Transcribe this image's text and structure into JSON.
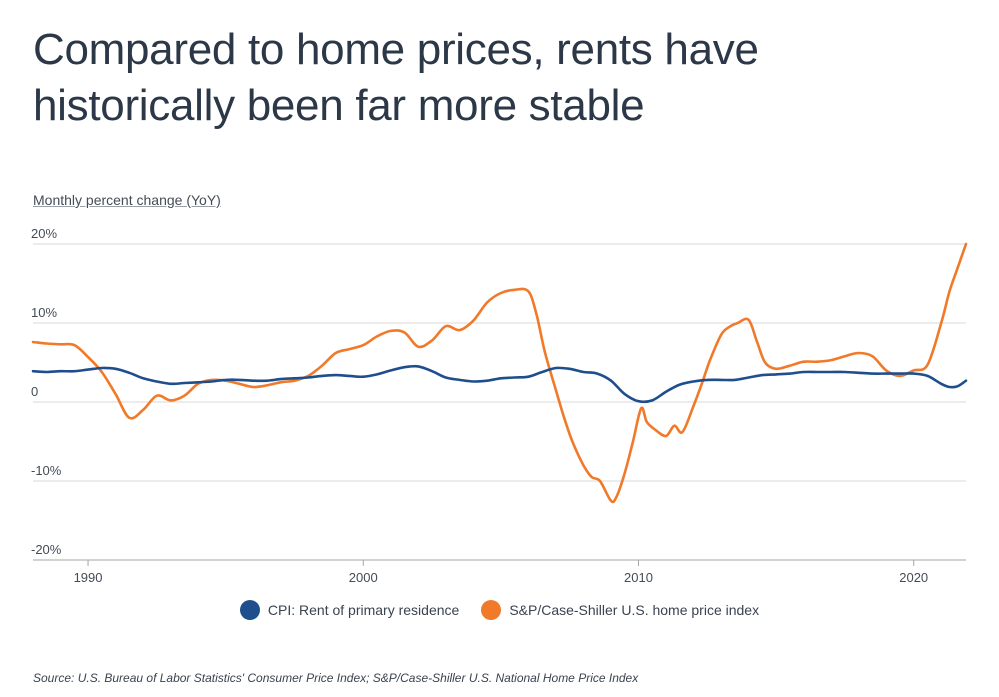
{
  "title": "Compared to home prices, rents have historically been far more stable",
  "source": "Source:  U.S. Bureau of Labor Statistics' Consumer Price Index; S&P/Case-Shiller U.S. National Home Price Index",
  "colors": {
    "rent": "#1f4e8c",
    "home": "#f07a2a",
    "grid": "#d9d9d9",
    "axis": "#a6a6a6"
  },
  "chart_data": {
    "type": "line",
    "title": "Compared to home prices, rents have historically been far more stable",
    "ylabel": "Monthly percent change (YoY)",
    "xlabel": "",
    "xlim": [
      1988,
      2021.9
    ],
    "ylim": [
      -20,
      20
    ],
    "y_ticks": [
      {
        "value": 20,
        "label": "20%"
      },
      {
        "value": 10,
        "label": "10%"
      },
      {
        "value": 0,
        "label": "0"
      },
      {
        "value": -10,
        "label": "-10%"
      },
      {
        "value": -20,
        "label": "-20%"
      }
    ],
    "x_ticks": [
      {
        "value": 1990,
        "label": "1990"
      },
      {
        "value": 2000,
        "label": "2000"
      },
      {
        "value": 2010,
        "label": "2010"
      },
      {
        "value": 2020,
        "label": "2020"
      }
    ],
    "grid": "horizontal",
    "legend_position": "bottom-center",
    "series": [
      {
        "name": "CPI: Rent of primary residence",
        "color": "#1f4e8c",
        "x": [
          1988,
          1988.5,
          1989,
          1989.5,
          1990,
          1990.5,
          1991,
          1991.5,
          1992,
          1992.5,
          1993,
          1993.5,
          1994,
          1994.5,
          1995,
          1995.5,
          1996,
          1996.5,
          1997,
          1997.5,
          1998,
          1998.5,
          1999,
          1999.5,
          2000,
          2000.5,
          2001,
          2001.5,
          2002,
          2002.5,
          2003,
          2003.5,
          2004,
          2004.5,
          2005,
          2005.5,
          2006,
          2006.5,
          2007,
          2007.5,
          2008,
          2008.5,
          2009,
          2009.5,
          2010,
          2010.5,
          2011,
          2011.5,
          2012,
          2012.5,
          2013,
          2013.5,
          2014,
          2014.5,
          2015,
          2015.5,
          2016,
          2016.5,
          2017,
          2017.5,
          2018,
          2018.5,
          2019,
          2019.5,
          2020,
          2020.5,
          2021,
          2021.3,
          2021.6,
          2021.9
        ],
        "values": [
          3.9,
          3.8,
          3.9,
          3.9,
          4.1,
          4.3,
          4.2,
          3.7,
          3.0,
          2.6,
          2.3,
          2.4,
          2.5,
          2.6,
          2.8,
          2.8,
          2.7,
          2.7,
          2.9,
          3.0,
          3.1,
          3.3,
          3.4,
          3.3,
          3.2,
          3.5,
          4.0,
          4.4,
          4.5,
          3.9,
          3.1,
          2.8,
          2.6,
          2.7,
          3.0,
          3.1,
          3.2,
          3.8,
          4.3,
          4.2,
          3.8,
          3.6,
          2.7,
          1.0,
          0.1,
          0.2,
          1.3,
          2.2,
          2.6,
          2.8,
          2.8,
          2.8,
          3.1,
          3.4,
          3.5,
          3.6,
          3.8,
          3.8,
          3.8,
          3.8,
          3.7,
          3.6,
          3.6,
          3.6,
          3.6,
          3.3,
          2.3,
          1.9,
          2.0,
          2.7
        ]
      },
      {
        "name": "S&P/Case-Shiller U.S. home price index",
        "color": "#f07a2a",
        "x": [
          1988,
          1988.5,
          1989,
          1989.5,
          1990,
          1990.5,
          1991,
          1991.5,
          1992,
          1992.5,
          1993,
          1993.5,
          1994,
          1994.5,
          1995,
          1995.5,
          1996,
          1996.5,
          1997,
          1997.5,
          1998,
          1998.5,
          1999,
          1999.5,
          2000,
          2000.5,
          2001,
          2001.5,
          2002,
          2002.5,
          2003,
          2003.5,
          2004,
          2004.5,
          2005,
          2005.5,
          2006,
          2006.3,
          2006.6,
          2007,
          2007.3,
          2007.6,
          2008,
          2008.3,
          2008.6,
          2009,
          2009.2,
          2009.5,
          2009.8,
          2010.1,
          2010.3,
          2010.6,
          2011,
          2011.3,
          2011.6,
          2012,
          2012.3,
          2012.6,
          2013,
          2013.3,
          2013.6,
          2014,
          2014.3,
          2014.6,
          2015,
          2015.5,
          2016,
          2016.5,
          2017,
          2017.5,
          2018,
          2018.5,
          2019,
          2019.5,
          2020,
          2020.5,
          2021,
          2021.3,
          2021.6,
          2021.9
        ],
        "values": [
          7.6,
          7.4,
          7.3,
          7.2,
          5.7,
          3.8,
          1.0,
          -2.0,
          -1.0,
          0.8,
          0.2,
          0.8,
          2.3,
          2.8,
          2.7,
          2.3,
          1.9,
          2.1,
          2.5,
          2.7,
          3.3,
          4.6,
          6.2,
          6.7,
          7.2,
          8.3,
          9.0,
          8.8,
          7.0,
          7.8,
          9.6,
          9.1,
          10.3,
          12.6,
          13.8,
          14.2,
          14.0,
          11.0,
          6.3,
          1.5,
          -2.0,
          -5.0,
          -8.0,
          -9.5,
          -10.0,
          -12.5,
          -12.0,
          -9.0,
          -5.0,
          -0.8,
          -2.5,
          -3.5,
          -4.3,
          -3.0,
          -3.8,
          -0.5,
          2.3,
          5.3,
          8.5,
          9.5,
          10.0,
          10.4,
          7.7,
          5.0,
          4.2,
          4.6,
          5.1,
          5.1,
          5.3,
          5.8,
          6.2,
          5.8,
          4.0,
          3.3,
          4.0,
          4.7,
          10.0,
          14.0,
          17.0,
          20.0
        ]
      }
    ]
  }
}
